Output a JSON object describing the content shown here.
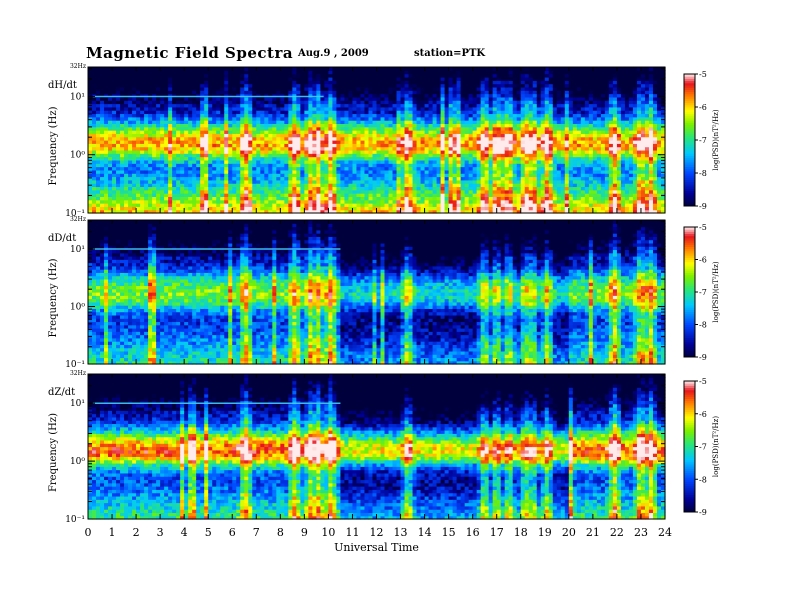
{
  "header": {
    "title": "Magnetic  Field  Spectra",
    "date": "Aug.9  , 2009",
    "station": "station=PTK"
  },
  "chart_data": [
    {
      "type": "heatmap",
      "panel_label": "dH/dt",
      "top_label": "32Hz",
      "ylabel": "Frequency  (Hz)",
      "yscale": "log",
      "ylim": [
        0.1,
        32
      ],
      "yticks": [
        {
          "value": 0.1,
          "label": "10⁻¹"
        },
        {
          "value": 1,
          "label": "10⁰"
        },
        {
          "value": 10,
          "label": "10¹"
        }
      ],
      "xlim": [
        0,
        24
      ],
      "colorbar": {
        "label": "log(PSD)(nT²/Hz)",
        "range": [
          -9,
          -5
        ],
        "ticks": [
          -5,
          -6,
          -7,
          -8,
          -9
        ]
      },
      "band_strength": 0.9,
      "lowfreq_strength": 0.45
    },
    {
      "type": "heatmap",
      "panel_label": "dD/dt",
      "top_label": "32Hz",
      "ylabel": "Frequency  (Hz)",
      "yscale": "log",
      "ylim": [
        0.1,
        32
      ],
      "yticks": [
        {
          "value": 0.1,
          "label": "10⁻¹"
        },
        {
          "value": 1,
          "label": "10⁰"
        },
        {
          "value": 10,
          "label": "10¹"
        }
      ],
      "xlim": [
        0,
        24
      ],
      "colorbar": {
        "label": "log(PSD)(nT²/Hz)",
        "range": [
          -9,
          -5
        ],
        "ticks": [
          -5,
          -6,
          -7,
          -8,
          -9
        ]
      },
      "band_strength": 0.6,
      "lowfreq_strength": 0.05
    },
    {
      "type": "heatmap",
      "panel_label": "dZ/dt",
      "top_label": "32Hz",
      "ylabel": "Frequency  (Hz)",
      "yscale": "log",
      "ylim": [
        0.1,
        32
      ],
      "yticks": [
        {
          "value": 0.1,
          "label": "10⁻¹"
        },
        {
          "value": 1,
          "label": "10⁰"
        },
        {
          "value": 10,
          "label": "10¹"
        }
      ],
      "xlim": [
        0,
        24
      ],
      "colorbar": {
        "label": "log(PSD)(nT²/Hz)",
        "range": [
          -9,
          -5
        ],
        "ticks": [
          -5,
          -6,
          -7,
          -8,
          -9
        ]
      },
      "band_strength": 1.0,
      "lowfreq_strength": 0.1
    }
  ],
  "x_axis": {
    "xlabel": "Universal  Time",
    "ticks": [
      0,
      1,
      2,
      3,
      4,
      5,
      6,
      7,
      8,
      9,
      10,
      11,
      12,
      13,
      14,
      15,
      16,
      17,
      18,
      19,
      20,
      21,
      22,
      23,
      24
    ]
  }
}
